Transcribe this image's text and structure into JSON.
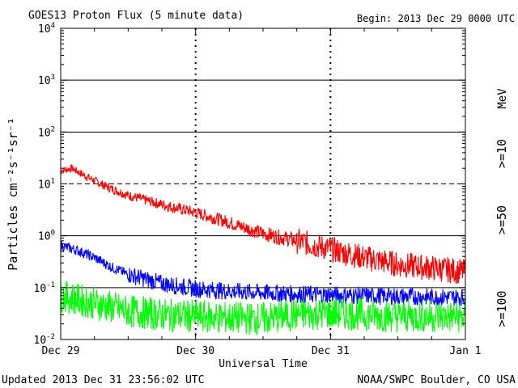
{
  "header": {
    "title": "GOES13 Proton Flux (5 minute data)",
    "begin": "Begin: 2013 Dec 29 0000 UTC"
  },
  "footer": {
    "updated": "Updated 2013 Dec 31 23:56:02 UTC",
    "credit": "NOAA/SWPC Boulder, CO USA"
  },
  "chart_data": {
    "type": "line",
    "title": "GOES13 Proton Flux (5 minute data)",
    "xlabel": "Universal Time",
    "ylabel": "Particles cm⁻²s⁻¹sr⁻¹",
    "y_scale": "log",
    "ylim": [
      0.01,
      10000
    ],
    "xlim": [
      "2013-12-29",
      "2014-01-01"
    ],
    "x_tick_labels": [
      "Dec 29",
      "Dec 30",
      "Dec 31",
      "Jan 1"
    ],
    "y_ticks": [
      {
        "base": "10",
        "exp": "-2"
      },
      {
        "base": "10",
        "exp": "-1"
      },
      {
        "base": "10",
        "exp": "0"
      },
      {
        "base": "10",
        "exp": "1"
      },
      {
        "base": "10",
        "exp": "2"
      },
      {
        "base": "10",
        "exp": "3"
      },
      {
        "base": "10",
        "exp": "4"
      }
    ],
    "unit_label": "MeV",
    "grid": "horizontal at each decade (10¹ dashed); vertical dashed at day boundaries",
    "legend_placement": "right, rotated",
    "series": [
      {
        "name": ">=10",
        "color": "#ff0000",
        "x_hours": [
          0,
          2,
          4,
          8,
          12,
          18,
          24,
          30,
          36,
          42,
          48,
          54,
          60,
          66,
          72
        ],
        "values": [
          18,
          20,
          15,
          9,
          6,
          4,
          2.8,
          1.8,
          1.1,
          0.8,
          0.55,
          0.38,
          0.28,
          0.24,
          0.2
        ]
      },
      {
        "name": ">=50",
        "color": "#0000ff",
        "x_hours": [
          0,
          3,
          6,
          9,
          12,
          18,
          24,
          30,
          36,
          42,
          48,
          54,
          60,
          66,
          72
        ],
        "values": [
          0.65,
          0.52,
          0.38,
          0.25,
          0.18,
          0.12,
          0.095,
          0.085,
          0.08,
          0.075,
          0.072,
          0.07,
          0.068,
          0.066,
          0.065
        ]
      },
      {
        "name": ">=100",
        "color": "#00ff00",
        "x_hours": [
          0,
          6,
          12,
          18,
          24,
          30,
          36,
          42,
          48,
          54,
          60,
          66,
          72
        ],
        "values": [
          0.07,
          0.05,
          0.035,
          0.03,
          0.028,
          0.026,
          0.025,
          0.03,
          0.032,
          0.03,
          0.028,
          0.028,
          0.027
        ]
      }
    ]
  }
}
